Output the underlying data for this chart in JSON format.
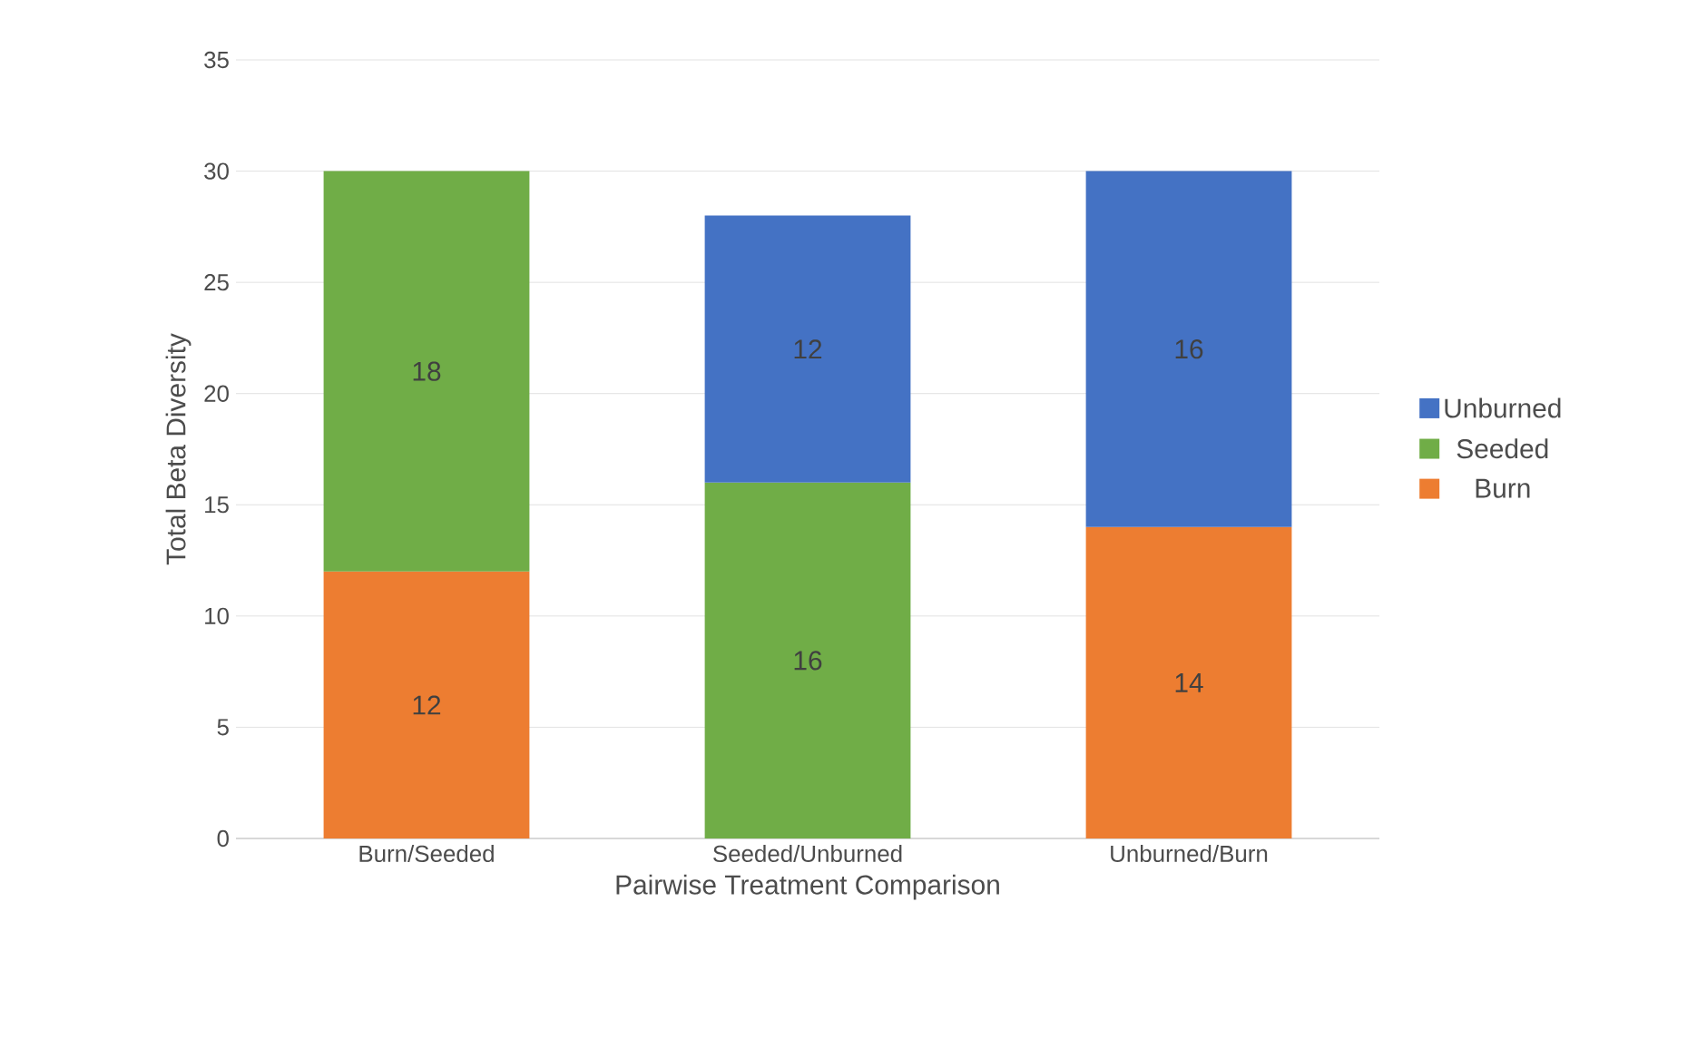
{
  "chart_data": {
    "type": "bar",
    "stacked": true,
    "xlabel": "Pairwise Treatment Comparison",
    "ylabel": "Total Beta Diversity",
    "categories": [
      "Burn/Seeded",
      "Seeded/Unburned",
      "Unburned/Burn"
    ],
    "series": [
      {
        "name": "Burn",
        "color": "#ed7d31",
        "values": [
          12,
          null,
          14
        ]
      },
      {
        "name": "Seeded",
        "color": "#70ad47",
        "values": [
          18,
          16,
          null
        ]
      },
      {
        "name": "Unburned",
        "color": "#4472c4",
        "values": [
          null,
          12,
          16
        ]
      }
    ],
    "ylim": [
      0,
      35
    ],
    "yticks": [
      0,
      5,
      10,
      15,
      20,
      25,
      30,
      35
    ],
    "grid": "y",
    "legend": "right",
    "data_labels": true
  }
}
